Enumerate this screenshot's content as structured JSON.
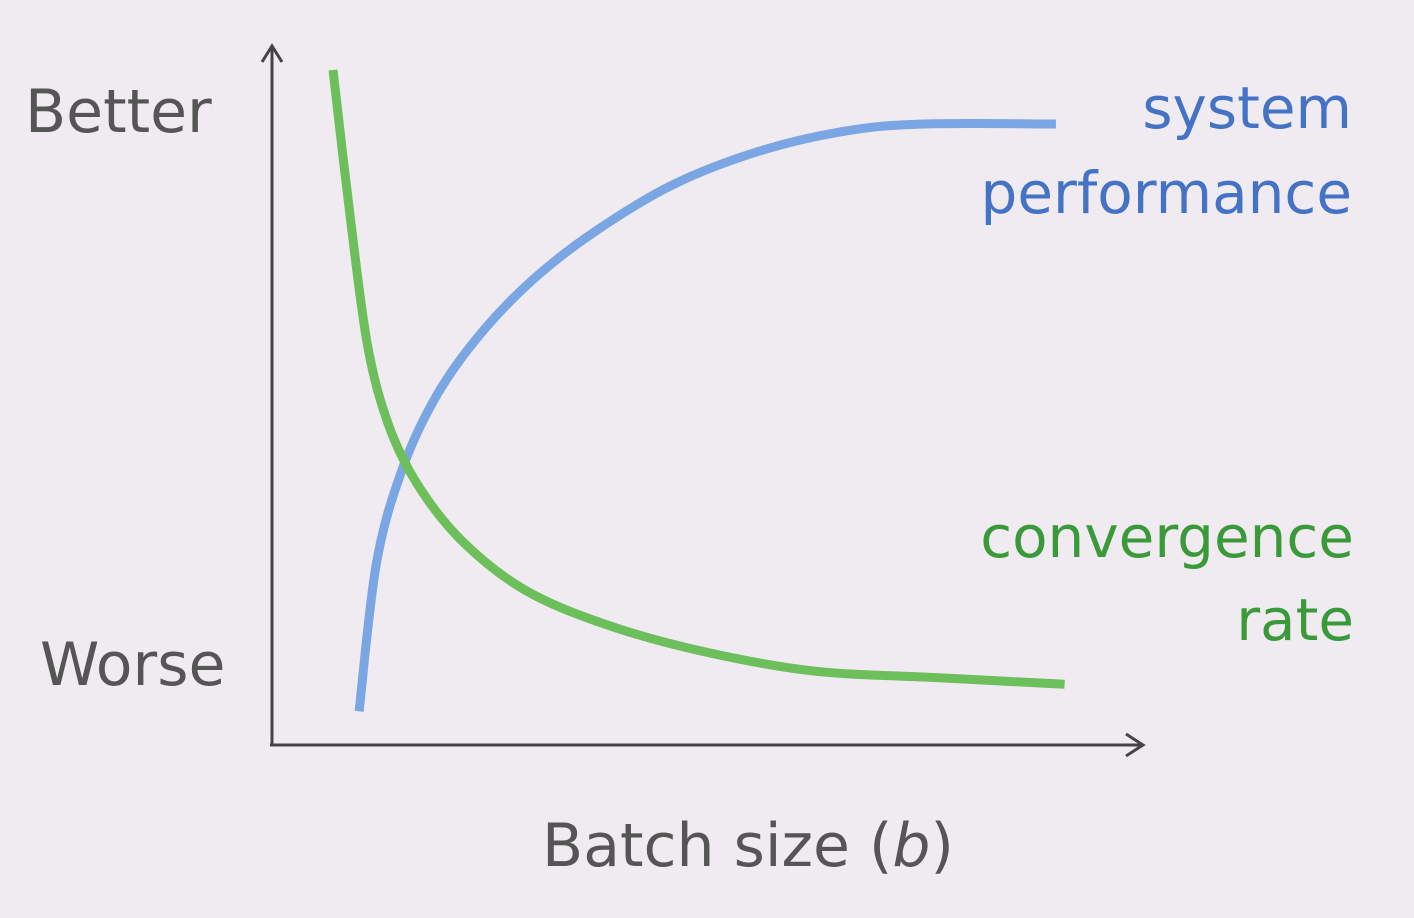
{
  "chart_data": {
    "type": "line",
    "title": "",
    "xlabel": {
      "main": "Batch size (",
      "var": "b",
      "close": ")"
    },
    "y_ticks": {
      "top": "Better",
      "bottom": "Worse"
    },
    "xlim": [
      0,
      1
    ],
    "ylim": [
      0,
      1
    ],
    "grid": false,
    "legend": "inline-right",
    "series": [
      {
        "name_lines": [
          "system",
          "performance"
        ],
        "color": "#7aa6e3",
        "label_color": "#4472c4",
        "points": [
          [
            0.1,
            0.05
          ],
          [
            0.12,
            0.27
          ],
          [
            0.15,
            0.41
          ],
          [
            0.19,
            0.52
          ],
          [
            0.24,
            0.61
          ],
          [
            0.3,
            0.69
          ],
          [
            0.37,
            0.76
          ],
          [
            0.46,
            0.83
          ],
          [
            0.56,
            0.88
          ],
          [
            0.66,
            0.91
          ],
          [
            0.75,
            0.92
          ],
          [
            0.9,
            0.92
          ]
        ]
      },
      {
        "name_lines": [
          "convergence",
          "rate"
        ],
        "color": "#6cbf5b",
        "label_color": "#3a9a3a",
        "points": [
          [
            0.07,
            1.0
          ],
          [
            0.09,
            0.78
          ],
          [
            0.11,
            0.59
          ],
          [
            0.135,
            0.47
          ],
          [
            0.17,
            0.38
          ],
          [
            0.22,
            0.3
          ],
          [
            0.29,
            0.23
          ],
          [
            0.38,
            0.18
          ],
          [
            0.49,
            0.14
          ],
          [
            0.62,
            0.11
          ],
          [
            0.76,
            0.1
          ],
          [
            0.91,
            0.09
          ]
        ]
      }
    ]
  }
}
